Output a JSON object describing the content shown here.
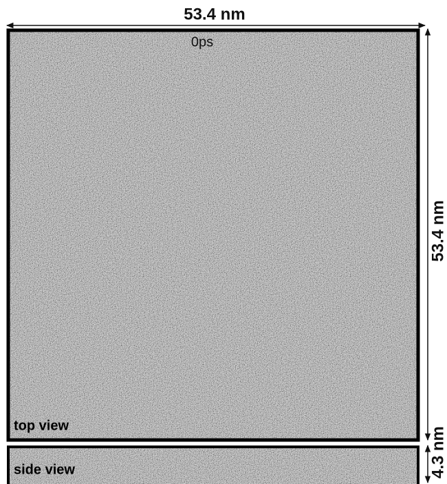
{
  "dimensions": {
    "width_label": "53.4 nm",
    "height_label": "53.4 nm",
    "thickness_label": "4.3 nm"
  },
  "time_label": "0ps",
  "panels": [
    {
      "label": "top view"
    },
    {
      "label": "side view"
    }
  ]
}
